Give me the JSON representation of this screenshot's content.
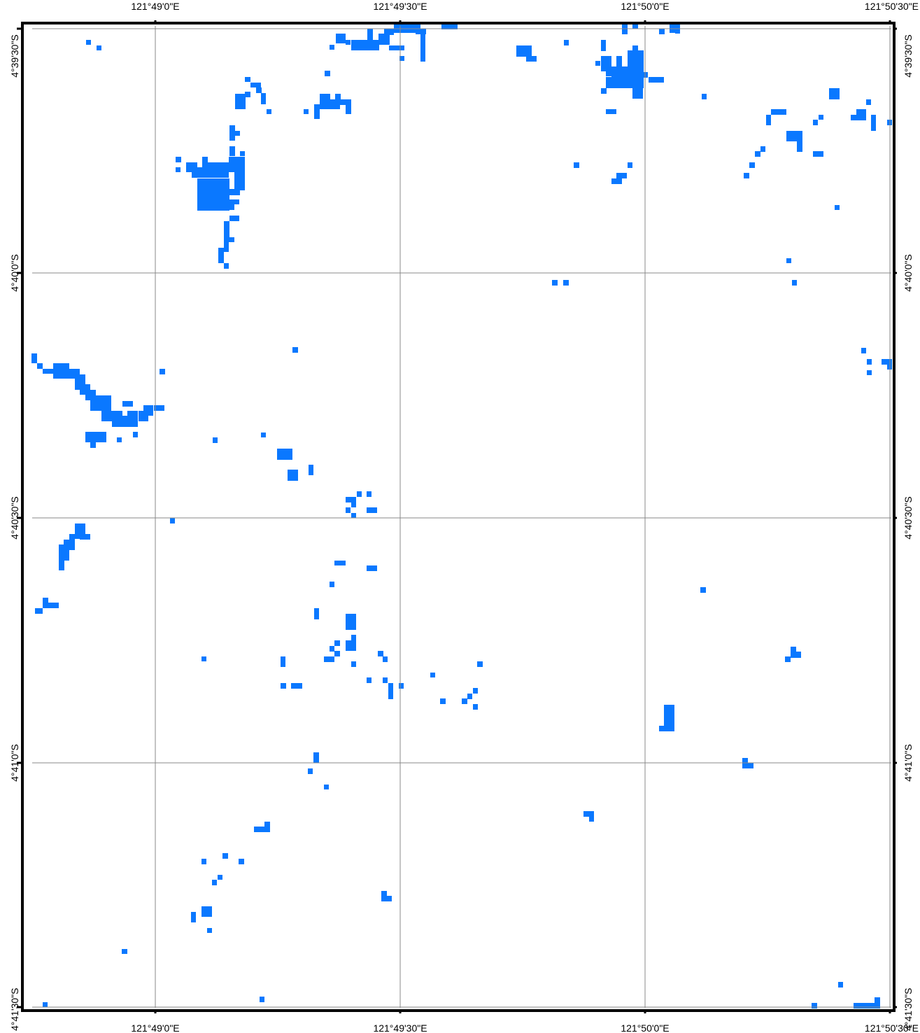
{
  "map": {
    "feature_color": "#0a78ff",
    "frame_color": "#000000",
    "grid_color": "#888888",
    "x_labels": [
      {
        "value": 121.81667,
        "text": "121°49'0\"E"
      },
      {
        "value": 121.825,
        "text": "121°49'30\"E"
      },
      {
        "value": 121.83333,
        "text": "121°50'0\"E"
      },
      {
        "value": 121.84167,
        "text": "121°50'30\"E"
      }
    ],
    "y_labels": [
      {
        "value": -4.65833,
        "text": "4°39'30\"S"
      },
      {
        "value": -4.66667,
        "text": "4°40'0\"S"
      },
      {
        "value": -4.675,
        "text": "4°40'30\"S"
      },
      {
        "value": -4.68333,
        "text": "4°41'0\"S"
      },
      {
        "value": -4.69167,
        "text": "4°41'30\"S"
      }
    ]
  }
}
